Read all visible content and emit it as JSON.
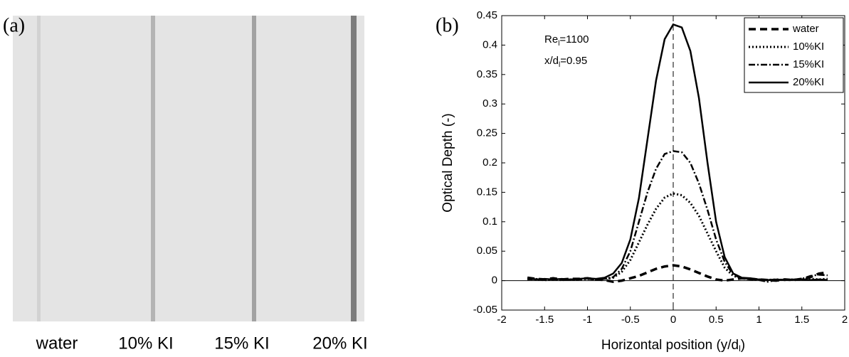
{
  "panel_a": {
    "label": "(a)",
    "labels": [
      "water",
      "10% KI",
      "15% KI",
      "20% KI"
    ]
  },
  "chart_data": {
    "type": "line",
    "panel_label": "(b)",
    "xlabel": [
      "Horizontal position (y/d",
      "l",
      ")"
    ],
    "ylabel": "Optical Depth (-)",
    "annotations": [
      [
        "Re",
        "l",
        "=1100"
      ],
      [
        "x/d",
        "l",
        "=0.95"
      ]
    ],
    "xlim": [
      -2,
      2
    ],
    "ylim": [
      -0.05,
      0.45
    ],
    "xticks": [
      -2,
      -1.5,
      -1,
      -0.5,
      0,
      0.5,
      1,
      1.5,
      2
    ],
    "yticks": [
      -0.05,
      0,
      0.05,
      0.1,
      0.15,
      0.2,
      0.25,
      0.3,
      0.35,
      0.4,
      0.45
    ],
    "vline": 0,
    "hline": 0,
    "legend": "upper right",
    "x": [
      -1.7,
      -1.6,
      -1.5,
      -1.4,
      -1.3,
      -1.2,
      -1.1,
      -1.0,
      -0.9,
      -0.8,
      -0.7,
      -0.6,
      -0.5,
      -0.4,
      -0.3,
      -0.2,
      -0.1,
      0,
      0.1,
      0.2,
      0.3,
      0.4,
      0.5,
      0.6,
      0.7,
      0.8,
      0.9,
      1.0,
      1.1,
      1.2,
      1.3,
      1.4,
      1.5,
      1.6,
      1.7,
      1.8
    ],
    "series": [
      {
        "name": "water",
        "color": "#000000",
        "dash": "dashed",
        "values": [
          0.005,
          0.003,
          0.002,
          0.004,
          0.002,
          0.003,
          0.003,
          0.004,
          0.002,
          0.001,
          -0.002,
          0.0,
          0.004,
          0.008,
          0.014,
          0.02,
          0.024,
          0.026,
          0.024,
          0.019,
          0.013,
          0.007,
          0.002,
          0.0,
          0.002,
          0.004,
          0.003,
          0.002,
          0.001,
          0.0,
          0.002,
          0.001,
          0.003,
          0.006,
          0.012,
          0.014
        ]
      },
      {
        "name": "10%KI",
        "color": "#000000",
        "dash": "dotted",
        "values": [
          0.003,
          0.002,
          0.001,
          0.002,
          0.001,
          0.002,
          0.002,
          0.003,
          0.002,
          0.003,
          0.005,
          0.015,
          0.035,
          0.065,
          0.095,
          0.122,
          0.141,
          0.148,
          0.145,
          0.132,
          0.11,
          0.08,
          0.05,
          0.022,
          0.008,
          0.004,
          0.003,
          0.002,
          0.001,
          0.002,
          0.001,
          0.002,
          0.002,
          0.003,
          0.002,
          0.003
        ]
      },
      {
        "name": "15%KI",
        "color": "#000000",
        "dash": "dashdot",
        "values": [
          0.002,
          0.003,
          0.001,
          0.002,
          0.002,
          0.001,
          0.002,
          0.003,
          0.002,
          0.003,
          0.006,
          0.02,
          0.05,
          0.1,
          0.15,
          0.19,
          0.215,
          0.22,
          0.218,
          0.2,
          0.165,
          0.12,
          0.07,
          0.032,
          0.01,
          0.004,
          0.002,
          0.001,
          -0.002,
          0.001,
          0.002,
          0.001,
          0.003,
          0.008,
          0.01,
          0.009
        ]
      },
      {
        "name": "20%KI",
        "color": "#000000",
        "dash": "solid",
        "values": [
          0.004,
          0.002,
          0.003,
          0.002,
          0.003,
          0.002,
          0.003,
          0.004,
          0.003,
          0.005,
          0.012,
          0.03,
          0.07,
          0.14,
          0.24,
          0.34,
          0.41,
          0.435,
          0.43,
          0.39,
          0.31,
          0.2,
          0.1,
          0.04,
          0.012,
          0.005,
          0.004,
          0.002,
          0.001,
          0.002,
          0.001,
          0.002,
          0.002,
          0.001,
          0.002,
          0.001
        ]
      }
    ]
  }
}
